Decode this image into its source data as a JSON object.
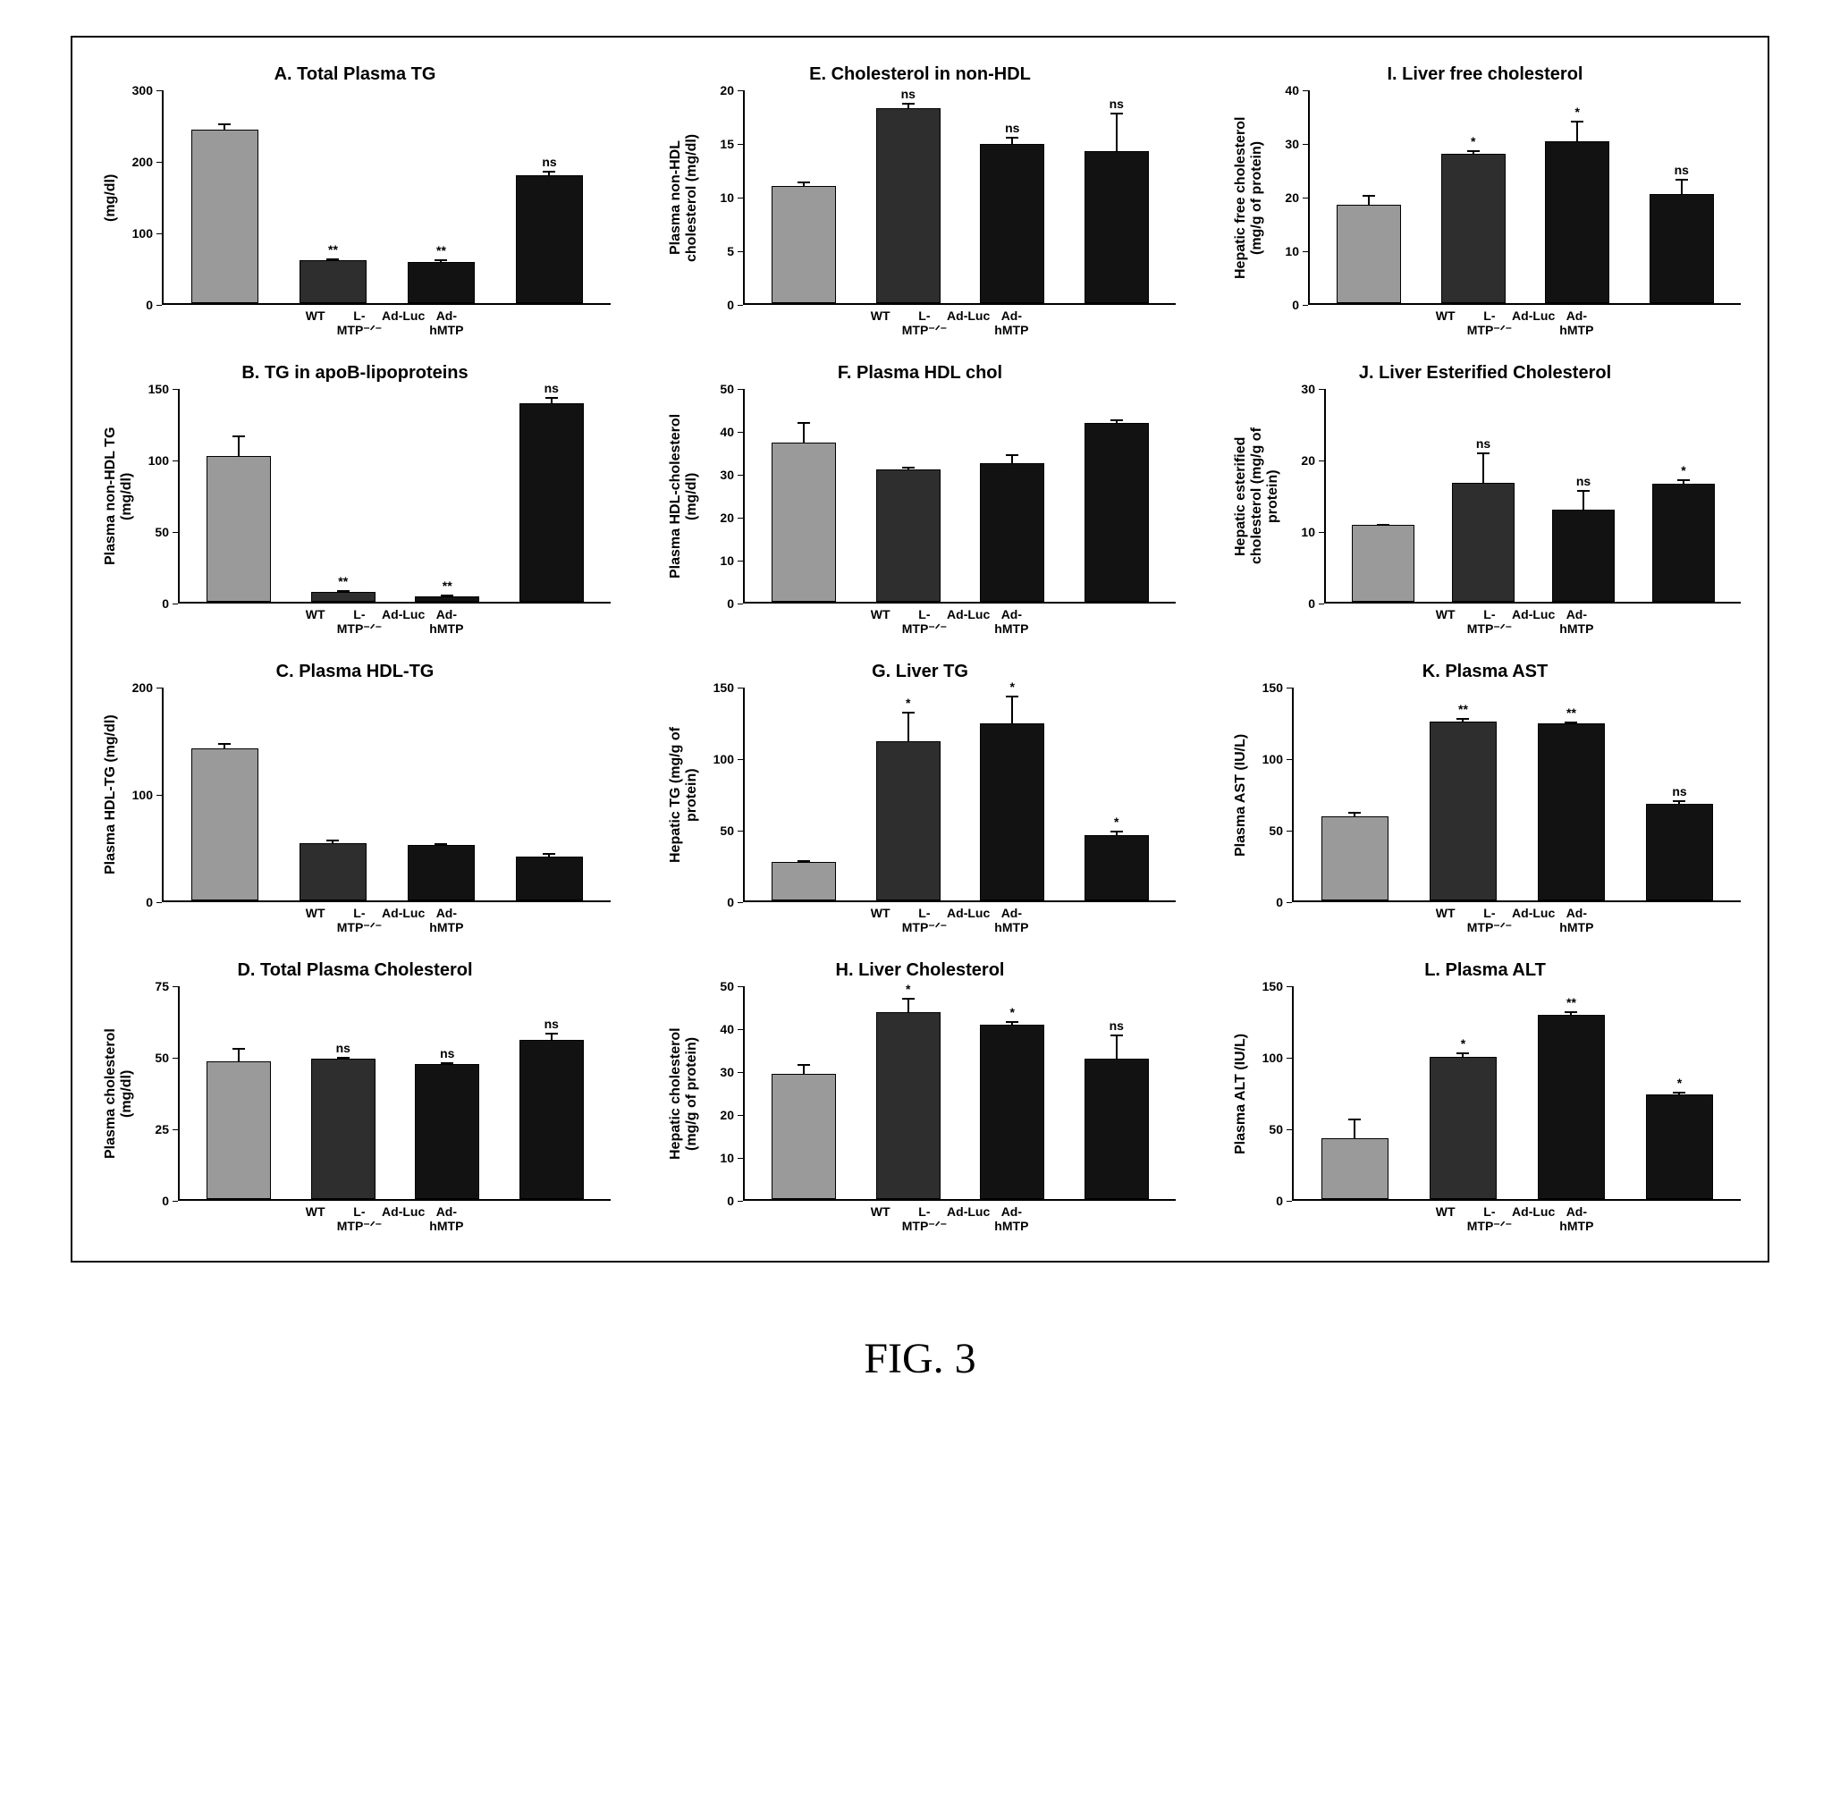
{
  "caption": "FIG. 3",
  "categories": [
    "WT",
    "L-MTP⁻ᐟ⁻",
    "Ad-Luc",
    "Ad-hMTP"
  ],
  "bar_colors": [
    "#9a9a9a",
    "#2e2e2e",
    "#121212",
    "#121212"
  ],
  "panel_title_fontsize": 20,
  "axis_label_fontsize": 16,
  "tick_fontsize": 14,
  "panels": [
    {
      "key": "A",
      "title": "A. Total Plasma TG",
      "ylabel": "(mg/dl)",
      "ymax": 300,
      "ytick_step": 100,
      "values": [
        245,
        60,
        58,
        180
      ],
      "errors": [
        10,
        5,
        5,
        8
      ],
      "sig": [
        "",
        "**",
        "**",
        "ns"
      ]
    },
    {
      "key": "E",
      "title": "E. Cholesterol in non-HDL",
      "ylabel": "Plasma non-HDL\ncholesterol (mg/dl)",
      "ymax": 20,
      "ytick_step": 5,
      "values": [
        11,
        18.3,
        15,
        14.3
      ],
      "errors": [
        0.5,
        0.6,
        0.7,
        3.7
      ],
      "sig": [
        "",
        "ns",
        "ns",
        "ns"
      ]
    },
    {
      "key": "I",
      "title": "I. Liver free cholesterol",
      "ylabel": "Hepatic free cholesterol\n(mg/g of protein)",
      "ymax": 40,
      "ytick_step": 10,
      "values": [
        18.5,
        28,
        30.5,
        20.5
      ],
      "errors": [
        2,
        1,
        4,
        3
      ],
      "sig": [
        "",
        "*",
        "*",
        "ns"
      ]
    },
    {
      "key": "B",
      "title": "B. TG in apoB-lipoproteins",
      "ylabel": "Plasma non-HDL TG\n(mg/dl)",
      "ymax": 150,
      "ytick_step": 50,
      "values": [
        103,
        7,
        4,
        140
      ],
      "errors": [
        15,
        2,
        2,
        5
      ],
      "sig": [
        "",
        "**",
        "**",
        "ns"
      ]
    },
    {
      "key": "F",
      "title": "F. Plasma HDL chol",
      "ylabel": "Plasma HDL-cholesterol\n(mg/dl)",
      "ymax": 50,
      "ytick_step": 10,
      "values": [
        37.5,
        31,
        32.5,
        42
      ],
      "errors": [
        5,
        1,
        2.5,
        1
      ],
      "sig": [
        "",
        "",
        "",
        ""
      ]
    },
    {
      "key": "J",
      "title": "J. Liver Esterified Cholesterol",
      "ylabel": "Hepatic esterified\ncholesterol (mg/g of\nprotein)",
      "ymax": 30,
      "ytick_step": 10,
      "values": [
        10.8,
        16.8,
        13,
        16.7
      ],
      "errors": [
        0.3,
        4.5,
        3,
        0.7
      ],
      "sig": [
        "",
        "ns",
        "ns",
        "*"
      ]
    },
    {
      "key": "C",
      "title": "C. Plasma HDL-TG",
      "ylabel": "Plasma HDL-TG (mg/dl)",
      "ymax": 200,
      "ytick_step": 100,
      "values": [
        143,
        54,
        52,
        41
      ],
      "errors": [
        6,
        4,
        3,
        5
      ],
      "sig": [
        "",
        "",
        "",
        ""
      ]
    },
    {
      "key": "G",
      "title": "G. Liver TG",
      "ylabel": "Hepatic TG (mg/g of\nprotein)",
      "ymax": 150,
      "ytick_step": 50,
      "values": [
        27,
        112,
        125,
        46
      ],
      "errors": [
        2,
        22,
        20,
        4
      ],
      "sig": [
        "",
        "*",
        "*",
        "*"
      ]
    },
    {
      "key": "K",
      "title": "K. Plasma AST",
      "ylabel": "Plasma AST (IU/L)",
      "ymax": 150,
      "ytick_step": 50,
      "values": [
        59,
        126,
        125,
        68
      ],
      "errors": [
        4,
        3,
        2,
        3
      ],
      "sig": [
        "",
        "**",
        "**",
        "ns"
      ]
    },
    {
      "key": "D",
      "title": "D. Total Plasma Cholesterol",
      "ylabel": "Plasma cholesterol\n(mg/dl)",
      "ymax": 75,
      "ytick_step": 25,
      "values": [
        48.5,
        49.5,
        47.5,
        56
      ],
      "errors": [
        5,
        1,
        1,
        3
      ],
      "sig": [
        "",
        "ns",
        "ns",
        "ns"
      ]
    },
    {
      "key": "H",
      "title": "H. Liver Cholesterol",
      "ylabel": "Hepatic cholesterol\n(mg/g of protein)",
      "ymax": 50,
      "ytick_step": 10,
      "values": [
        29.5,
        44,
        41,
        33
      ],
      "errors": [
        2.5,
        3.5,
        1,
        6
      ],
      "sig": [
        "",
        "*",
        "*",
        "ns"
      ]
    },
    {
      "key": "L",
      "title": "L. Plasma ALT",
      "ylabel": "Plasma ALT (IU/L)",
      "ymax": 150,
      "ytick_step": 50,
      "values": [
        43,
        100,
        130,
        74
      ],
      "errors": [
        15,
        4,
        3,
        2
      ],
      "sig": [
        "",
        "*",
        "**",
        "*"
      ]
    }
  ]
}
